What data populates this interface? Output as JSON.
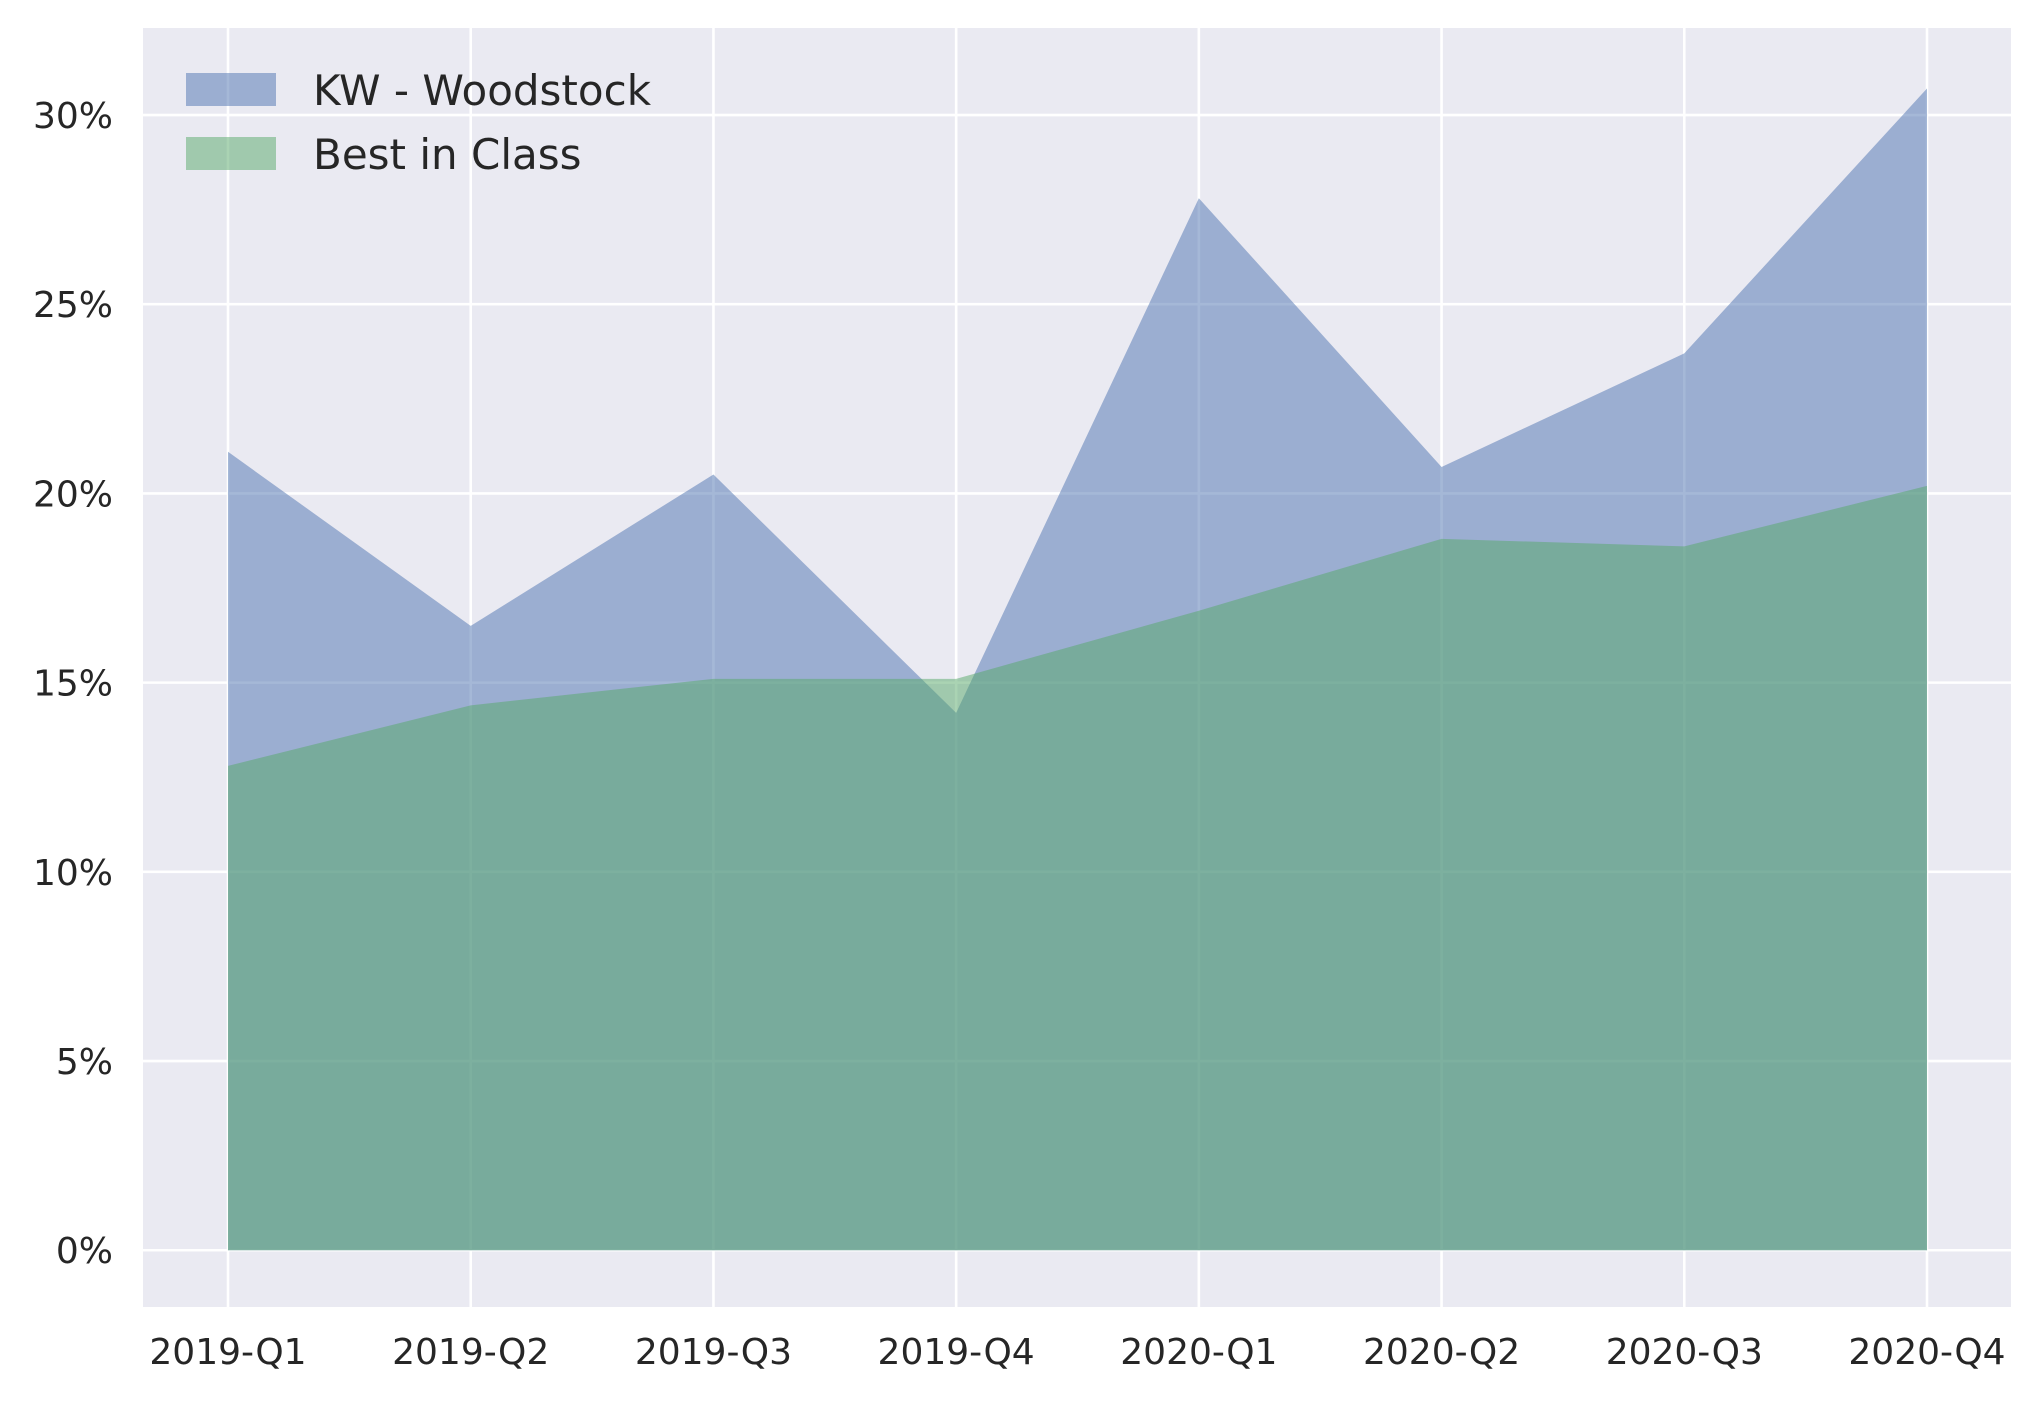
{
  "chart_data": {
    "type": "area",
    "title": "",
    "xlabel": "",
    "ylabel": "",
    "categories": [
      "2019-Q1",
      "2019-Q2",
      "2019-Q3",
      "2019-Q4",
      "2020-Q1",
      "2020-Q2",
      "2020-Q3",
      "2020-Q4"
    ],
    "series": [
      {
        "name": "KW - Woodstock",
        "values": [
          0.211,
          0.165,
          0.205,
          0.142,
          0.278,
          0.207,
          0.237,
          0.307
        ],
        "color": "#4c72b0"
      },
      {
        "name": "Best in Class",
        "values": [
          0.128,
          0.144,
          0.151,
          0.151,
          0.169,
          0.188,
          0.186,
          0.202
        ],
        "color": "#55a868"
      }
    ],
    "ylim": [
      -0.015,
      0.323
    ],
    "yticks": [
      0,
      0.05,
      0.1,
      0.15,
      0.2,
      0.25,
      0.3
    ],
    "ytick_labels": [
      "0%",
      "5%",
      "10%",
      "15%",
      "20%",
      "25%",
      "30%"
    ],
    "fill_opacity": 0.5,
    "grid": true,
    "legend_position": "top-left",
    "background_color": "#eaeaf2",
    "grid_color": "#ffffff"
  }
}
